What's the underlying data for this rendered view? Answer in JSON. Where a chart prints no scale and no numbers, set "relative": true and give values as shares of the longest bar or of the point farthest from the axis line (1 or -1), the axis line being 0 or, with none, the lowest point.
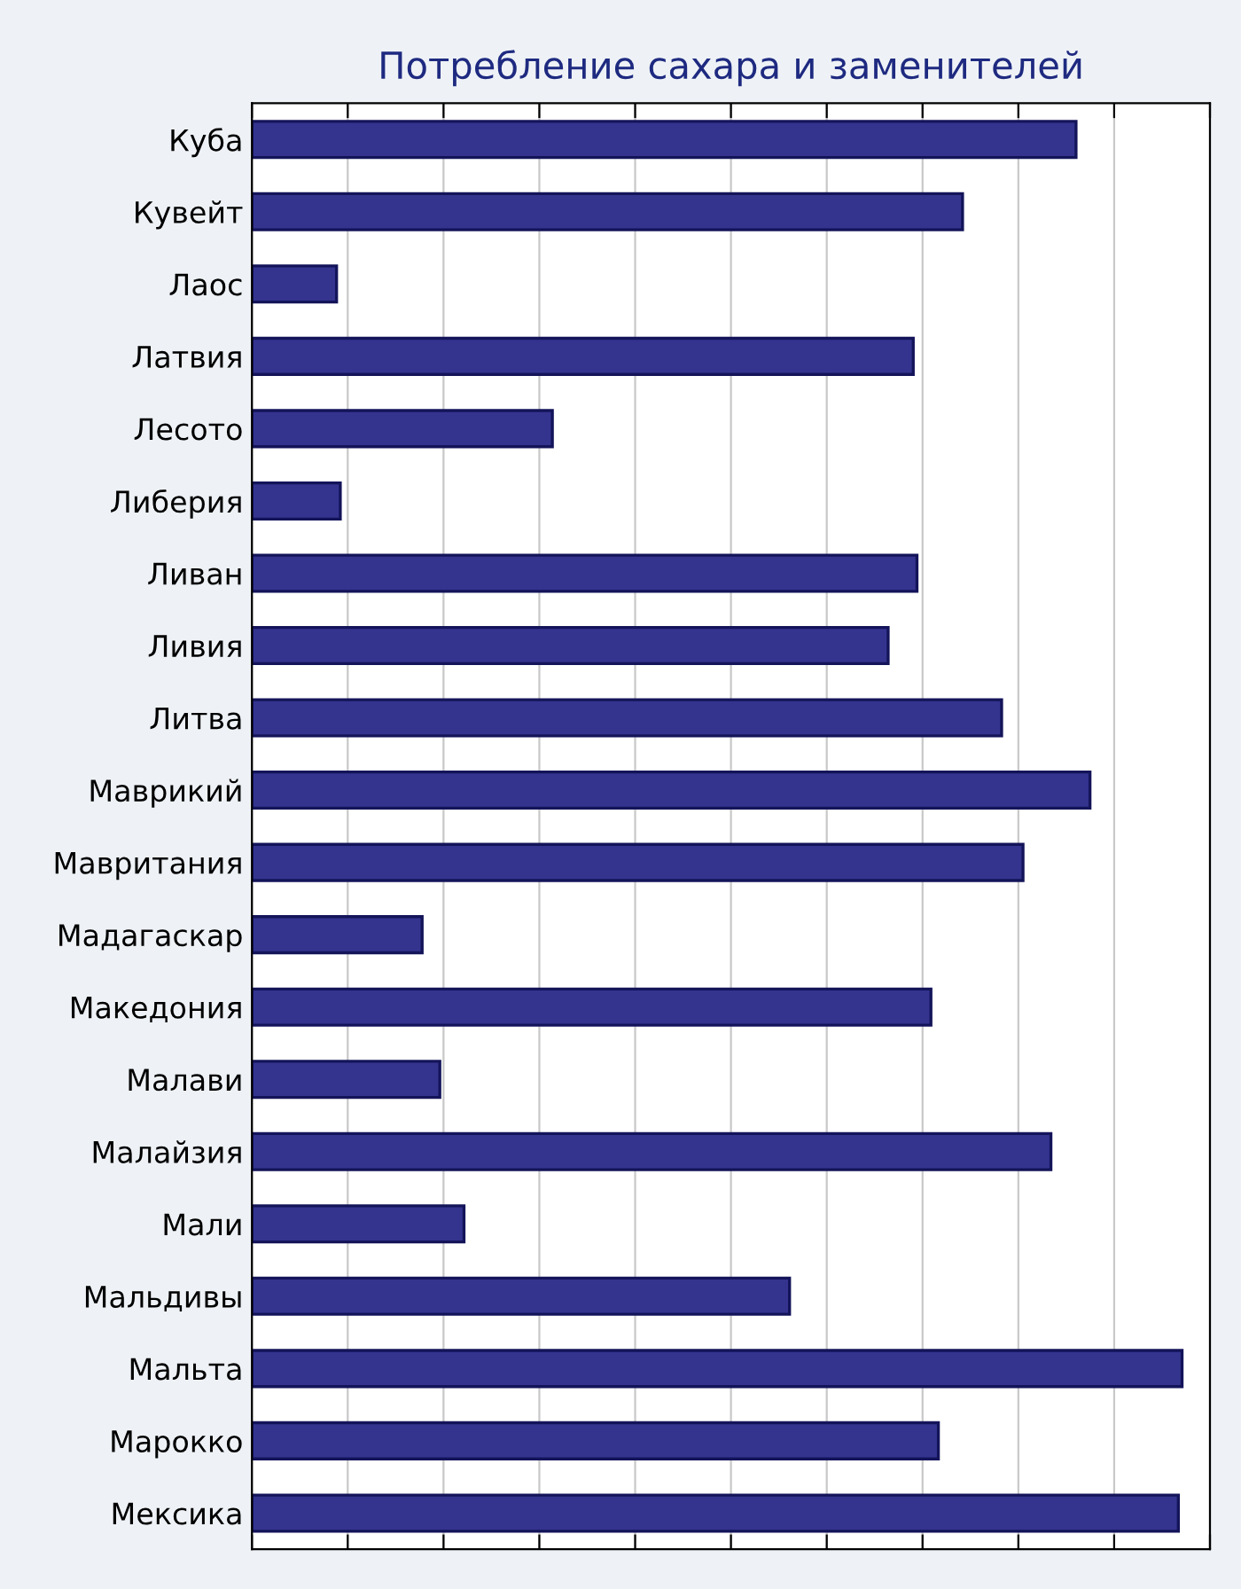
{
  "chart_data": {
    "type": "bar",
    "orientation": "horizontal",
    "relative": true,
    "title": "Потребление сахара и заменителей",
    "categories": [
      "Куба",
      "Кувейт",
      "Лаос",
      "Латвия",
      "Лесото",
      "Либерия",
      "Ливан",
      "Ливия",
      "Литва",
      "Маврикий",
      "Мавритания",
      "Мадагаскар",
      "Македония",
      "Малави",
      "Малайзия",
      "Мали",
      "Мальдивы",
      "Мальта",
      "Марокко",
      "Мексика"
    ],
    "values": [
      0.886,
      0.764,
      0.091,
      0.711,
      0.323,
      0.095,
      0.715,
      0.684,
      0.806,
      0.901,
      0.829,
      0.183,
      0.73,
      0.202,
      0.859,
      0.228,
      0.578,
      1,
      0.738,
      0.996
    ],
    "color": "#34348f",
    "grid": "x"
  }
}
